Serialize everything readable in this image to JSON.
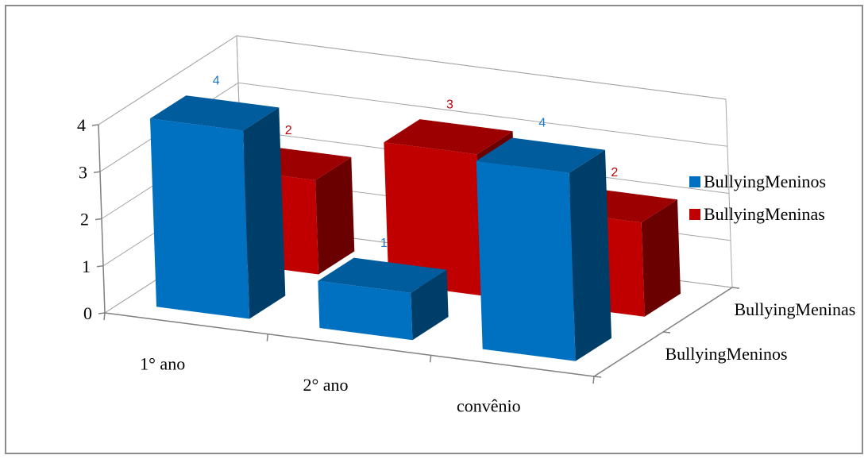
{
  "chart_data": {
    "type": "bar",
    "categories": [
      "1° ano",
      "2° ano",
      "convênio"
    ],
    "series": [
      {
        "name": "BullyingMeninos",
        "values": [
          4,
          1,
          4
        ],
        "color": "#0070c0"
      },
      {
        "name": "BullyingMeninas",
        "values": [
          2,
          3,
          2
        ],
        "color": "#c00000"
      }
    ],
    "depth_labels": [
      "BullyingMeninas",
      "BullyingMeninos"
    ],
    "y_ticks": [
      "0",
      "1",
      "2",
      "3",
      "4"
    ],
    "ylim": [
      0,
      4
    ],
    "grid": true,
    "legend_position": "right",
    "three_d": true,
    "label_colors": {
      "BullyingMeninos": "#1f78c4",
      "BullyingMeninas": "#c00000"
    }
  }
}
